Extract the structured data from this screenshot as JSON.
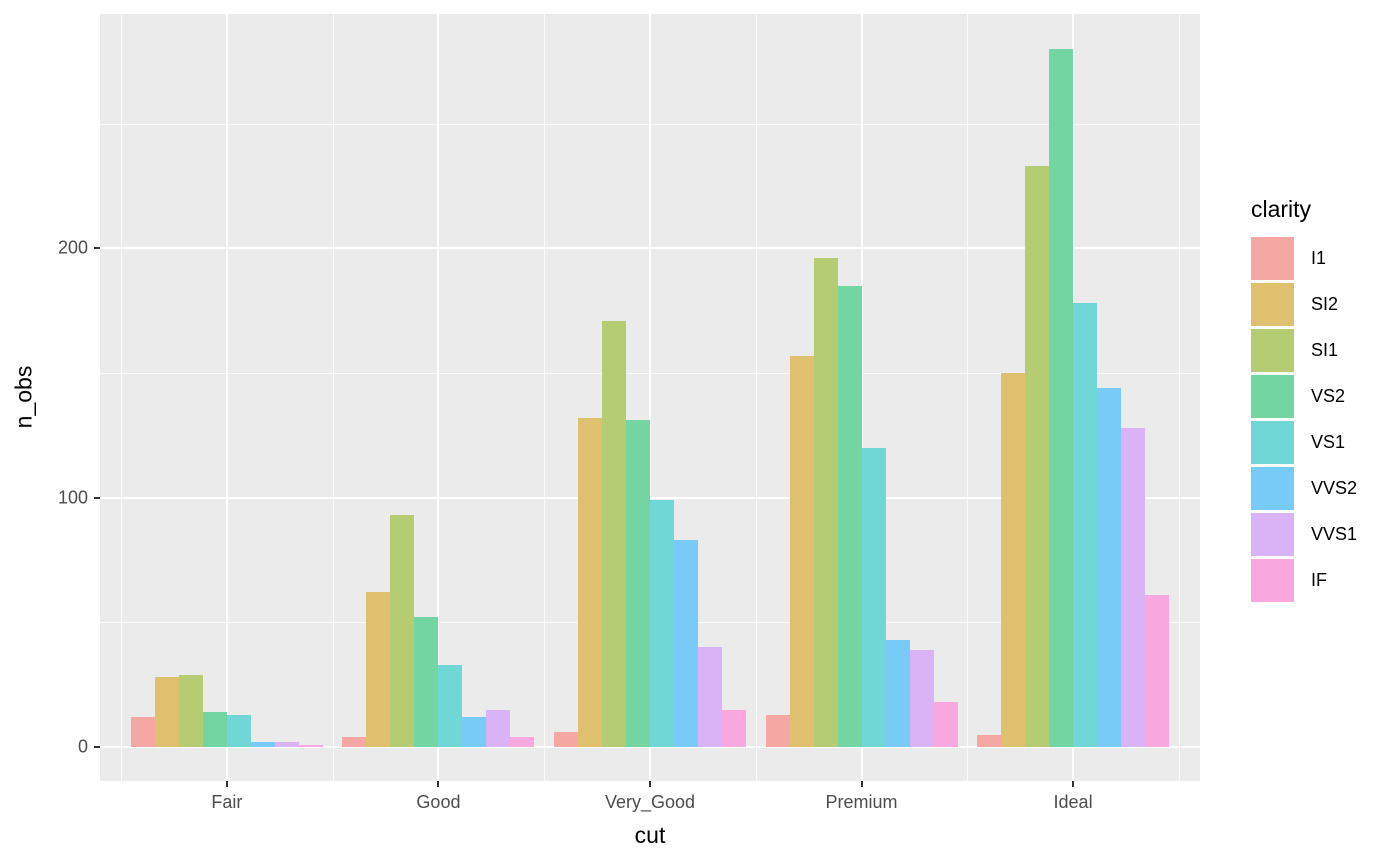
{
  "figure": {
    "background": "#FFFFFF",
    "panel_background": "#EBEBEB",
    "gridline_color": "#FFFFFF",
    "tick_color": "#333333",
    "tick_label_color": "#4D4D4D",
    "axis_title_color": "#000000"
  },
  "axes": {
    "x_title": "cut",
    "y_title": "n_obs",
    "y_tick_labels": [
      "0",
      "100",
      "200"
    ]
  },
  "legend": {
    "title": "clarity",
    "entries": [
      {
        "label": "I1",
        "color": "#F4A7A3"
      },
      {
        "label": "SI2",
        "color": "#DFC06F"
      },
      {
        "label": "SI1",
        "color": "#B5CC73"
      },
      {
        "label": "VS2",
        "color": "#72D5A2"
      },
      {
        "label": "VS1",
        "color": "#70D7D6"
      },
      {
        "label": "VVS2",
        "color": "#78CAF7"
      },
      {
        "label": "VVS1",
        "color": "#D9B3F6"
      },
      {
        "label": "IF",
        "color": "#F8A7DF"
      }
    ]
  },
  "chart_data": {
    "type": "bar",
    "title": "",
    "xlabel": "cut",
    "ylabel": "n_obs",
    "categories": [
      "Fair",
      "Good",
      "Very_Good",
      "Premium",
      "Ideal"
    ],
    "series": [
      {
        "name": "I1",
        "color": "#F4A7A3",
        "values": [
          12,
          4,
          6,
          13,
          5
        ]
      },
      {
        "name": "SI2",
        "color": "#DFC06F",
        "values": [
          28,
          62,
          132,
          157,
          150
        ]
      },
      {
        "name": "SI1",
        "color": "#B5CC73",
        "values": [
          29,
          93,
          171,
          196,
          233
        ]
      },
      {
        "name": "VS2",
        "color": "#72D5A2",
        "values": [
          14,
          52,
          131,
          185,
          280
        ]
      },
      {
        "name": "VS1",
        "color": "#70D7D6",
        "values": [
          13,
          33,
          99,
          120,
          178
        ]
      },
      {
        "name": "VVS2",
        "color": "#78CAF7",
        "values": [
          2,
          12,
          83,
          43,
          144
        ]
      },
      {
        "name": "VVS1",
        "color": "#D9B3F6",
        "values": [
          2,
          15,
          40,
          39,
          128
        ]
      },
      {
        "name": "IF",
        "color": "#F8A7DF",
        "values": [
          1,
          4,
          15,
          18,
          61
        ]
      }
    ],
    "y_ticks": [
      0,
      100,
      200
    ],
    "y_minor_ticks": [
      50,
      150,
      250
    ],
    "ylim": [
      0,
      294
    ],
    "grid": "on",
    "legend_position": "right",
    "bar_grouping": "dodge"
  }
}
